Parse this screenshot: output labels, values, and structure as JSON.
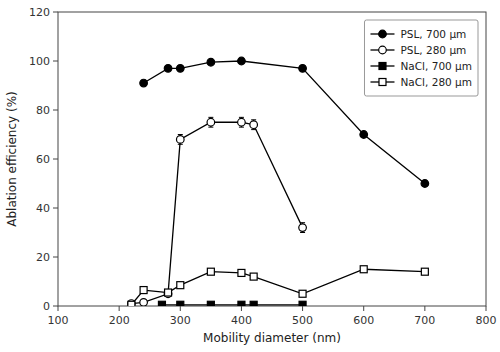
{
  "chart_data": {
    "type": "line",
    "xlabel": "Mobility diameter (nm)",
    "ylabel": "Ablation efficiency (%)",
    "xlim": [
      100,
      800
    ],
    "ylim": [
      0,
      120
    ],
    "xticks": [
      100,
      200,
      300,
      400,
      500,
      600,
      700,
      800
    ],
    "yticks": [
      0,
      20,
      40,
      60,
      80,
      100,
      120
    ],
    "grid": false,
    "legend": "upper right",
    "series": [
      {
        "name": "PSL, 700 μm",
        "color": "black",
        "marker": "circle",
        "x": [
          240,
          280,
          300,
          350,
          400,
          500,
          600,
          700
        ],
        "values": [
          91,
          97,
          97,
          99.5,
          100,
          97,
          70,
          50
        ],
        "errors": [
          1,
          0.5,
          0.5,
          0.5,
          0.5,
          0.5,
          1,
          1
        ]
      },
      {
        "name": "PSL, 280 μm",
        "color": "black",
        "marker": "open-circle",
        "x": [
          220,
          240,
          280,
          300,
          350,
          400,
          420,
          500
        ],
        "values": [
          1,
          1.5,
          5,
          68,
          75,
          75,
          74,
          32
        ],
        "errors": [
          0.3,
          0.3,
          0.5,
          2,
          2,
          2,
          2,
          2
        ]
      },
      {
        "name": "NaCl, 700 μm",
        "color": "black",
        "marker": "square",
        "x": [
          270,
          300,
          350,
          400,
          420,
          500
        ],
        "values": [
          0.5,
          0.5,
          0.5,
          0.5,
          0.5,
          0.5
        ],
        "errors": [
          0.3,
          0.3,
          0.3,
          0.3,
          0.3,
          0.3
        ]
      },
      {
        "name": "NaCl, 280 μm",
        "color": "black",
        "marker": "open-square",
        "x": [
          220,
          240,
          280,
          300,
          350,
          400,
          420,
          500,
          600,
          700
        ],
        "values": [
          0.5,
          6.5,
          5.5,
          8.5,
          14,
          13.5,
          12,
          5,
          15,
          14
        ],
        "errors": [
          0.3,
          0.5,
          0.5,
          0.5,
          0.8,
          0.8,
          0.8,
          0.5,
          0.8,
          0.8
        ]
      }
    ]
  }
}
